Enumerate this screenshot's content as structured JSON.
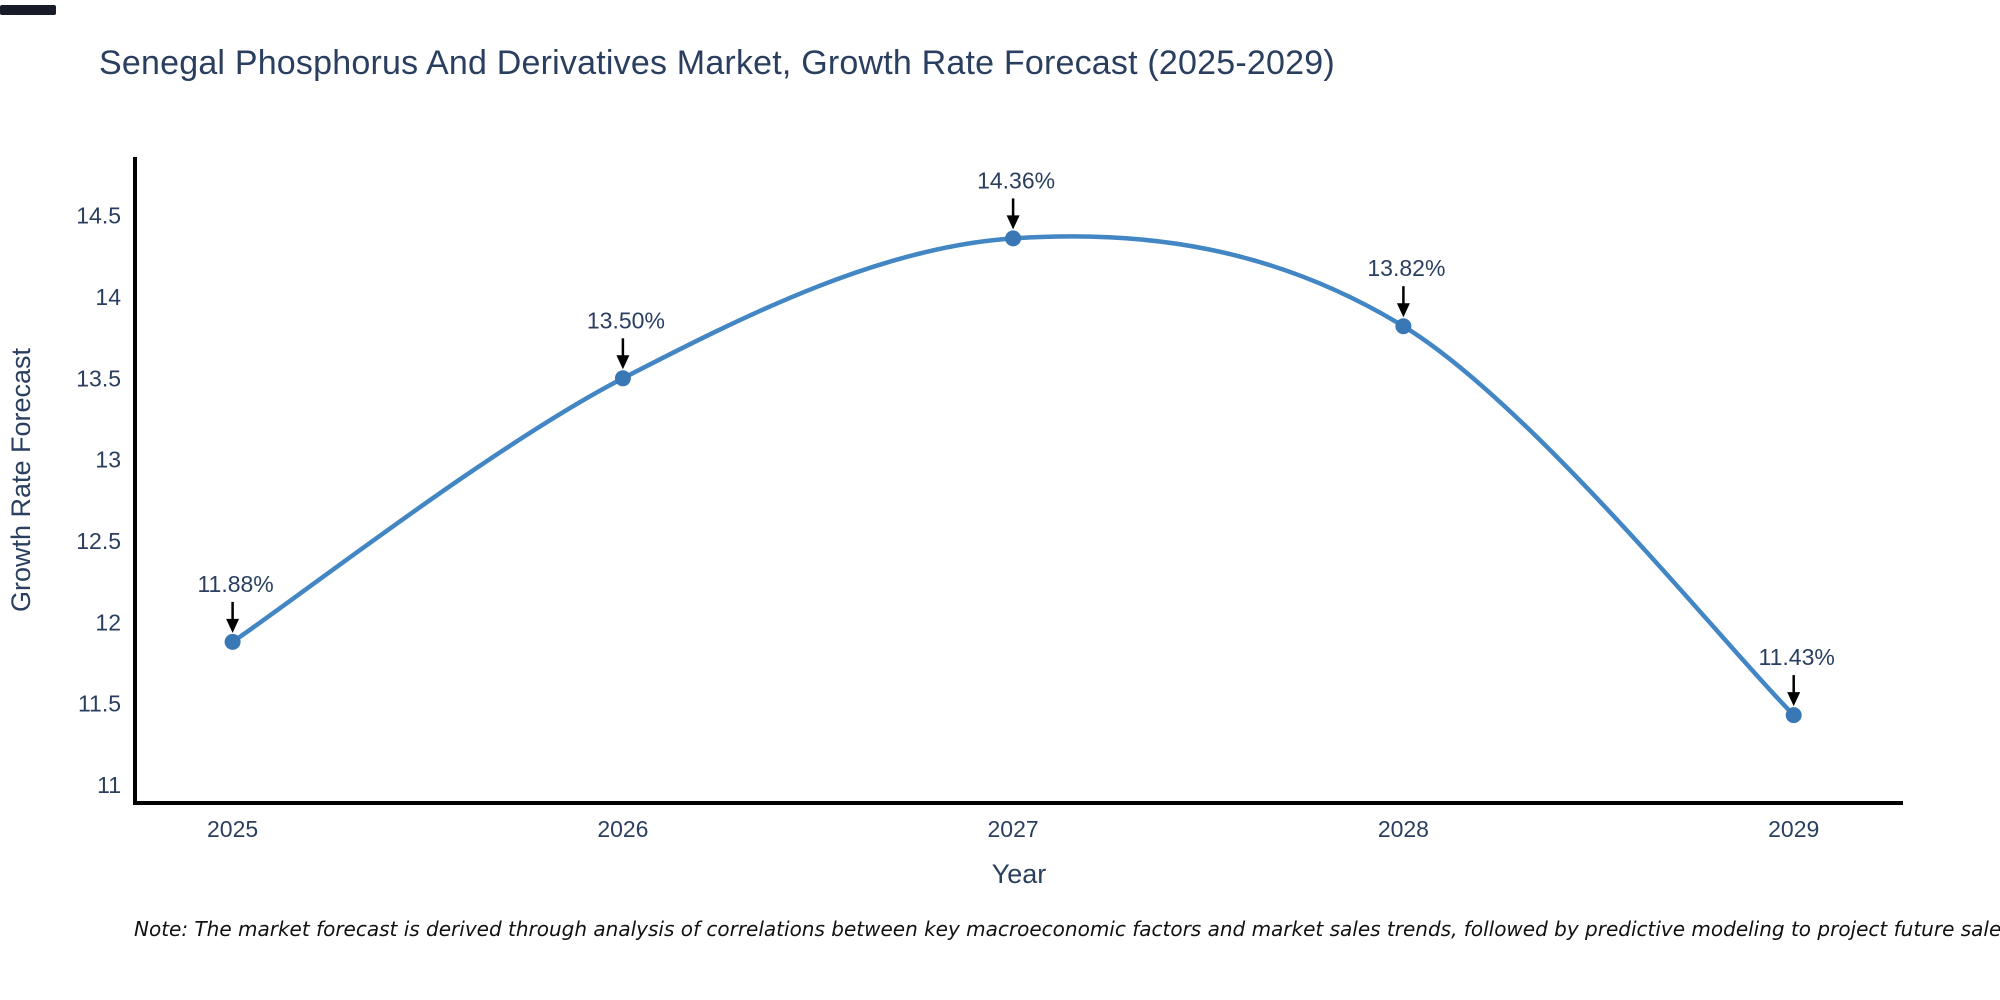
{
  "chart_data": {
    "type": "line",
    "title": "Senegal Phosphorus And Derivatives Market, Growth Rate Forecast (2025-2029)",
    "xlabel": "Year",
    "ylabel": "Growth Rate Forecast",
    "x": [
      2025,
      2026,
      2027,
      2028,
      2029
    ],
    "series": [
      {
        "name": "Growth Rate Forecast",
        "values": [
          11.88,
          13.5,
          14.36,
          13.82,
          11.43
        ]
      }
    ],
    "point_labels": [
      "11.88%",
      "13.50%",
      "14.36%",
      "13.82%",
      "11.43%"
    ],
    "xtick_labels": [
      "2025",
      "2026",
      "2027",
      "2028",
      "2029"
    ],
    "ytick_values": [
      11,
      11.5,
      12,
      12.5,
      13,
      13.5,
      14,
      14.5
    ],
    "ytick_labels": [
      "11",
      "11.5",
      "12",
      "12.5",
      "13",
      "13.5",
      "14",
      "14.5"
    ],
    "xlim": [
      2024.75,
      2029.28
    ],
    "ylim": [
      10.89,
      14.86
    ],
    "line_shape": "spline",
    "grid": false,
    "legend": "none",
    "markers": true,
    "annotations_have_arrows": true,
    "colors": {
      "line": "#4386c4",
      "marker": "#3a78b5",
      "text": "#2a3f5f",
      "axis": "#000000",
      "annotation_arrow": "#000000",
      "note": "#111111",
      "background": "#ffffff",
      "corner_mark": "#181c2a"
    }
  },
  "footnote": {
    "text": "Note: The market forecast is derived through analysis of correlations between key macroeconomic factors and market sales trends, followed by predictive modeling to project future sales"
  }
}
